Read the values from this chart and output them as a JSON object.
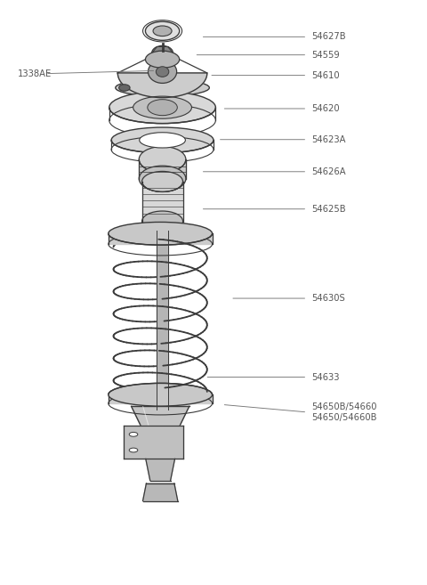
{
  "bg_color": "#ffffff",
  "line_color": "#3a3a3a",
  "text_color": "#555555",
  "fig_w": 4.8,
  "fig_h": 6.57,
  "dpi": 100,
  "parts": [
    {
      "label": "54627B",
      "xt": 0.73,
      "yt": 0.938,
      "xe": 0.47,
      "ye": 0.938
    },
    {
      "label": "54559",
      "xt": 0.73,
      "yt": 0.907,
      "xe": 0.455,
      "ye": 0.907
    },
    {
      "label": "54610",
      "xt": 0.73,
      "yt": 0.872,
      "xe": 0.49,
      "ye": 0.872
    },
    {
      "label": "54620",
      "xt": 0.73,
      "yt": 0.815,
      "xe": 0.52,
      "ye": 0.815
    },
    {
      "label": "54623A",
      "xt": 0.73,
      "yt": 0.762,
      "xe": 0.51,
      "ye": 0.762
    },
    {
      "label": "54626A",
      "xt": 0.73,
      "yt": 0.707,
      "xe": 0.47,
      "ye": 0.707
    },
    {
      "label": "54625B",
      "xt": 0.73,
      "yt": 0.643,
      "xe": 0.47,
      "ye": 0.643
    },
    {
      "label": "54630S",
      "xt": 0.73,
      "yt": 0.49,
      "xe": 0.54,
      "ye": 0.49
    },
    {
      "label": "54633",
      "xt": 0.73,
      "yt": 0.355,
      "xe": 0.48,
      "ye": 0.355
    },
    {
      "label": "54650B/54660\n54650/54660B",
      "xt": 0.73,
      "yt": 0.295,
      "xe": 0.52,
      "ye": 0.308
    }
  ],
  "left_part": {
    "label": "1338AE",
    "xt": 0.04,
    "yt": 0.875,
    "xe": 0.365,
    "ye": 0.88
  }
}
